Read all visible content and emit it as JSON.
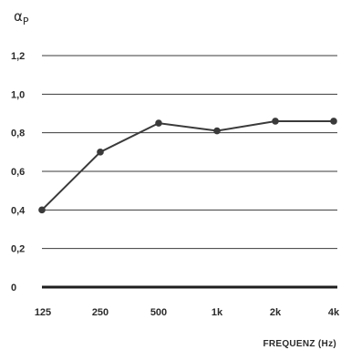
{
  "chart_data": {
    "type": "line",
    "ylabel_main": "α",
    "ylabel_sub": "P",
    "xlabel": "FREQUENZ (Hz)",
    "categories": [
      "125",
      "250",
      "500",
      "1k",
      "2k",
      "4k"
    ],
    "series": [
      {
        "values": [
          0.4,
          0.7,
          0.85,
          0.81,
          0.86,
          0.86
        ]
      }
    ],
    "yticks": [
      {
        "value": 0,
        "label": "0"
      },
      {
        "value": 0.2,
        "label": "0,2"
      },
      {
        "value": 0.4,
        "label": "0,4"
      },
      {
        "value": 0.6,
        "label": "0,6"
      },
      {
        "value": 0.8,
        "label": "0,8"
      },
      {
        "value": 1.0,
        "label": "1,0"
      },
      {
        "value": 1.2,
        "label": "1,2"
      }
    ],
    "ylim": [
      0,
      1.2
    ],
    "grid": true,
    "line_color": "#3a3a3a"
  }
}
